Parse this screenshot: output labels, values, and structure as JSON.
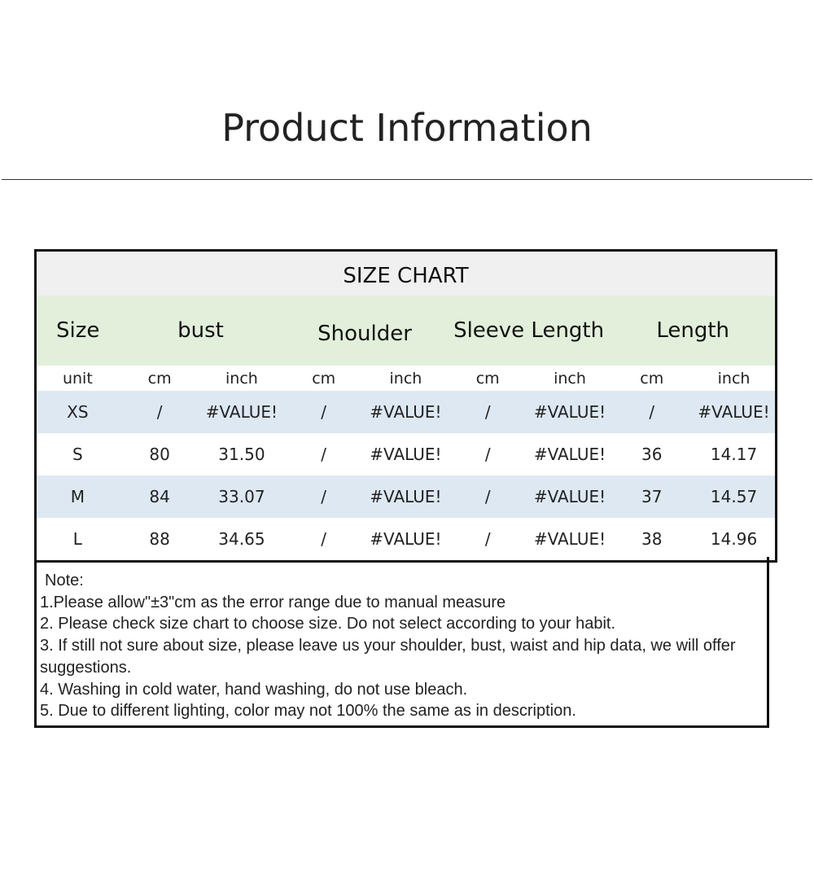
{
  "page_title": "Product Information",
  "size_chart": {
    "title": "SIZE CHART",
    "headers": [
      "Size",
      "bust",
      "Shoulder",
      "Sleeve Length",
      "Length"
    ],
    "units": [
      "unit",
      "cm",
      "inch",
      "cm",
      "inch",
      "cm",
      "inch",
      "cm",
      "inch"
    ],
    "rows": [
      [
        "XS",
        "/",
        "#VALUE!",
        "/",
        "#VALUE!",
        "/",
        "#VALUE!",
        "/",
        "#VALUE!"
      ],
      [
        "S",
        "80",
        "31.50",
        "/",
        "#VALUE!",
        "/",
        "#VALUE!",
        "36",
        "14.17"
      ],
      [
        "M",
        "84",
        "33.07",
        "/",
        "#VALUE!",
        "/",
        "#VALUE!",
        "37",
        "14.57"
      ],
      [
        "L",
        "88",
        "34.65",
        "/",
        "#VALUE!",
        "/",
        "#VALUE!",
        "38",
        "14.96"
      ]
    ],
    "colors": {
      "title_band": "#f0f0f0",
      "header_band": "#e2efda",
      "alt_row": "#dde8f3"
    }
  },
  "notes": {
    "heading": "Note:",
    "items": [
      "1.Please allow\"±3\"cm as the error range due to manual measure",
      "2. Please check size chart to choose size. Do not select according to your habit.",
      "3. If still not sure about size, please leave us your shoulder, bust, waist and hip data, we will offer suggestions.",
      "4. Washing in cold water, hand washing, do not use bleach.",
      "5. Due to different lighting, color may not 100% the same as in description."
    ]
  }
}
